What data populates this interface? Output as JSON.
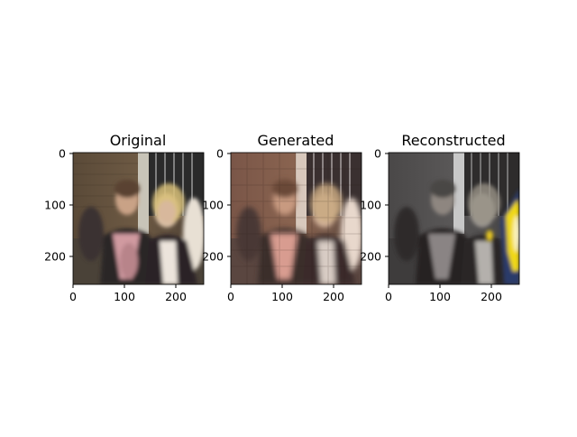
{
  "figure": {
    "background": "#ffffff",
    "tick_labels": {
      "y": [
        "0",
        "100",
        "200"
      ],
      "x": [
        "0",
        "100",
        "200"
      ]
    },
    "panels": [
      {
        "title": "Original",
        "image_description": "photo of two women on a street, natural colors",
        "tone": "natural"
      },
      {
        "title": "Generated",
        "image_description": "blurred, artifact-laden version of the photo with a reddish tint",
        "tone": "warm-blurred"
      },
      {
        "title": "Reconstructed",
        "image_description": "desaturated gray version of the photo with a yellow and blue patch at the right edge",
        "tone": "gray"
      }
    ]
  }
}
